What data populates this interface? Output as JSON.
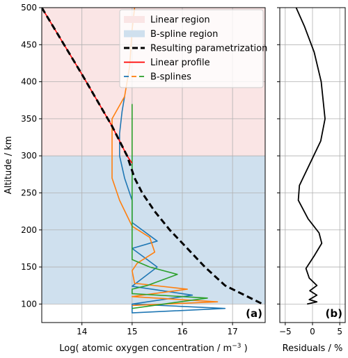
{
  "chart_data": [
    {
      "type": "line",
      "panel_label": "(a)",
      "xlabel": "Log( atomic oxygen concentration / m",
      "xlabel_exp": "−3",
      "xlabel_tail": " )",
      "ylabel": "Altitude / km",
      "xlim": [
        13.2,
        17.65
      ],
      "ylim": [
        75,
        500
      ],
      "xticks": [
        14,
        15,
        16,
        17
      ],
      "yticks": [
        100,
        150,
        200,
        250,
        300,
        350,
        400,
        450,
        500
      ],
      "grid": true,
      "regions": [
        {
          "name": "Linear region",
          "y_from": 300,
          "y_to": 500,
          "color": "#fae5e5"
        },
        {
          "name": "B-spline region",
          "y_from": 100,
          "y_to": 300,
          "color": "#cfe0ee"
        }
      ],
      "legend": {
        "placement": "top-right",
        "entries": [
          {
            "label": "Linear region",
            "kind": "patch",
            "color": "#fae5e5"
          },
          {
            "label": "B-spline region",
            "kind": "patch",
            "color": "#cfe0ee"
          },
          {
            "label": "Resulting parametrization",
            "kind": "dashed",
            "color": "#000000"
          },
          {
            "label": "Linear profile",
            "kind": "solid",
            "color": "#ff0000"
          },
          {
            "label": "B-splines",
            "kind": "multi",
            "colors": [
              "#1f77b4",
              "#ff7f0e",
              "#2ca02c"
            ]
          }
        ]
      },
      "series": [
        {
          "style": "solid",
          "color": "#ff0000",
          "points": [
            [
              13.2,
              500
            ],
            [
              14.0,
              410
            ],
            [
              14.6,
              340
            ],
            [
              14.9,
              300
            ],
            [
              15.0,
              290
            ]
          ]
        },
        {
          "style": "dashed",
          "color": "#000000",
          "points": [
            [
              13.2,
              500
            ],
            [
              14.0,
              410
            ],
            [
              14.6,
              340
            ],
            [
              14.9,
              300
            ],
            [
              15.05,
              270
            ],
            [
              15.2,
              250
            ],
            [
              15.45,
              225
            ],
            [
              15.75,
              200
            ],
            [
              16.1,
              175
            ],
            [
              16.45,
              150
            ],
            [
              16.85,
              125
            ],
            [
              17.6,
              100
            ]
          ]
        },
        {
          "style": "solid",
          "color": "#1f77b4",
          "points": [
            [
              15.0,
              100
            ],
            [
              16.85,
              94
            ],
            [
              15.0,
              88
            ],
            [
              15.0,
              100
            ],
            [
              16.2,
              112
            ],
            [
              15.0,
              124
            ],
            [
              15.5,
              150
            ],
            [
              15.0,
              175
            ],
            [
              15.5,
              185
            ],
            [
              15.0,
              210
            ],
            [
              15.0,
              240
            ],
            [
              14.85,
              270
            ],
            [
              14.75,
              300
            ],
            [
              14.75,
              330
            ],
            [
              14.8,
              360
            ],
            [
              14.85,
              380
            ]
          ]
        },
        {
          "style": "solid",
          "color": "#ff7f0e",
          "points": [
            [
              15.0,
              98
            ],
            [
              16.7,
              103
            ],
            [
              15.0,
              110
            ],
            [
              15.2,
              112
            ],
            [
              16.1,
              120
            ],
            [
              15.05,
              128
            ],
            [
              15.0,
              145
            ],
            [
              15.1,
              155
            ],
            [
              15.45,
              170
            ],
            [
              15.35,
              190
            ],
            [
              15.0,
              205
            ],
            [
              14.75,
              240
            ],
            [
              14.6,
              270
            ],
            [
              14.6,
              300
            ],
            [
              14.6,
              330
            ],
            [
              14.6,
              350
            ],
            [
              14.85,
              380
            ],
            [
              14.95,
              420
            ],
            [
              15.0,
              470
            ],
            [
              15.05,
              500
            ]
          ]
        },
        {
          "style": "solid",
          "color": "#2ca02c",
          "points": [
            [
              15.0,
              94
            ],
            [
              16.5,
              108
            ],
            [
              15.0,
              114
            ],
            [
              15.0,
              120
            ],
            [
              15.3,
              125
            ],
            [
              15.9,
              140
            ],
            [
              15.35,
              150
            ],
            [
              15.0,
              160
            ],
            [
              15.0,
              170
            ],
            [
              15.0,
              370
            ]
          ]
        }
      ]
    },
    {
      "type": "line",
      "panel_label": "(b)",
      "xlabel": "Residuals / %",
      "xlim": [
        -6,
        6
      ],
      "ylim": [
        75,
        500
      ],
      "xticks": [
        -5,
        0,
        5
      ],
      "xtick_labels": [
        "−5",
        "0",
        "5"
      ],
      "grid": true,
      "series": [
        {
          "style": "solid",
          "color": "#000000",
          "points": [
            [
              -3,
              500
            ],
            [
              -1.5,
              475
            ],
            [
              0.3,
              440
            ],
            [
              1.6,
              400
            ],
            [
              2.3,
              350
            ],
            [
              1.5,
              320
            ],
            [
              0.2,
              300
            ],
            [
              -2.4,
              260
            ],
            [
              -2.6,
              240
            ],
            [
              -0.8,
              215
            ],
            [
              1.2,
              196
            ],
            [
              1.7,
              182
            ],
            [
              0.3,
              165
            ],
            [
              -1.2,
              148
            ],
            [
              -0.6,
              135
            ],
            [
              0.8,
              125
            ],
            [
              -0.5,
              118
            ],
            [
              0.8,
              112
            ],
            [
              -0.6,
              106
            ],
            [
              0.8,
              103
            ],
            [
              -1.0,
              100
            ]
          ]
        }
      ]
    }
  ]
}
